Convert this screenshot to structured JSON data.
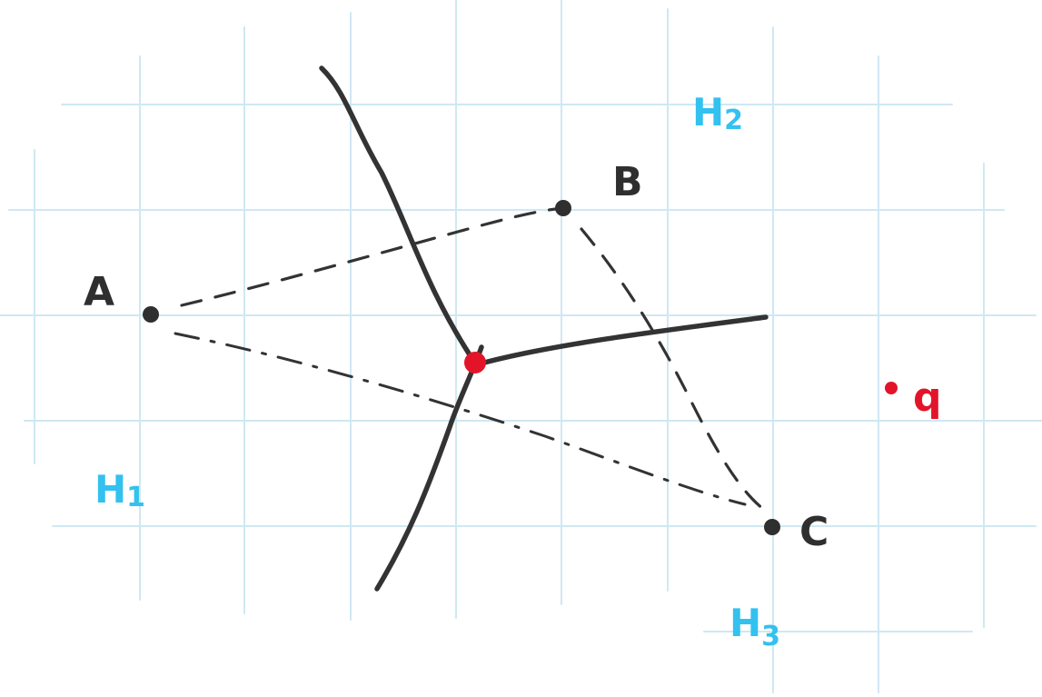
{
  "diagram": {
    "points": [
      {
        "id": "A",
        "label": "A"
      },
      {
        "id": "B",
        "label": "B"
      },
      {
        "id": "C",
        "label": "C"
      }
    ],
    "regions": [
      {
        "id": "H1",
        "letter": "H",
        "sub": "1"
      },
      {
        "id": "H2",
        "letter": "H",
        "sub": "2"
      },
      {
        "id": "H3",
        "letter": "H",
        "sub": "3"
      }
    ],
    "query_point": {
      "label": "q"
    },
    "colors": {
      "grid": "#cfe8f3",
      "ink": "#333333",
      "region_label": "#33c1f0",
      "highlight": "#e3142a"
    }
  }
}
